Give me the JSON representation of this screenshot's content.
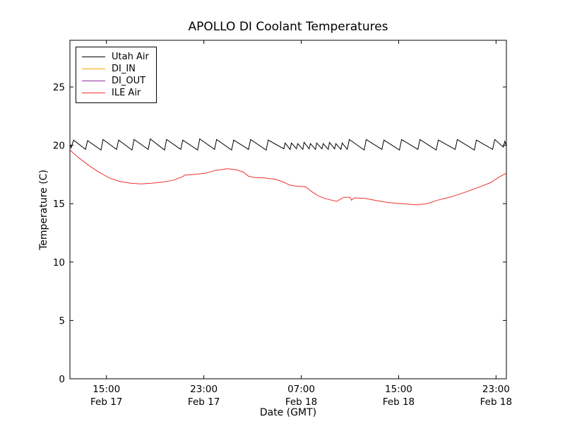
{
  "chart_data": {
    "type": "line",
    "title": "APOLLO DI Coolant Temperatures",
    "xlabel": "Date (GMT)",
    "ylabel": "Temperature (C)",
    "x_unit": "hours since Feb 17 00:00 GMT",
    "xlim": [
      12.0,
      47.85
    ],
    "ylim": [
      0,
      29
    ],
    "yticks": [
      0,
      5,
      10,
      15,
      20,
      25
    ],
    "xticks": [
      {
        "hour": 15,
        "time": "15:00",
        "date": "Feb 17"
      },
      {
        "hour": 23,
        "time": "23:00",
        "date": "Feb 17"
      },
      {
        "hour": 31,
        "time": "07:00",
        "date": "Feb 18"
      },
      {
        "hour": 39,
        "time": "15:00",
        "date": "Feb 18"
      },
      {
        "hour": 47,
        "time": "23:00",
        "date": "Feb 18"
      }
    ],
    "grid": false,
    "legend_position": "upper-left",
    "frame_color": "#000000",
    "series": [
      {
        "name": "Utah Air",
        "color": "#000000",
        "visible_in_plot": true,
        "points": [
          [
            12.0,
            20.1
          ],
          [
            12.1,
            19.8
          ],
          [
            12.3,
            20.45
          ],
          [
            13.28,
            19.65
          ],
          [
            13.45,
            20.4
          ],
          [
            14.55,
            19.6
          ],
          [
            14.72,
            20.5
          ],
          [
            15.83,
            19.65
          ],
          [
            16.0,
            20.45
          ],
          [
            17.1,
            19.6
          ],
          [
            17.27,
            20.5
          ],
          [
            18.43,
            19.65
          ],
          [
            18.6,
            20.55
          ],
          [
            19.77,
            19.6
          ],
          [
            19.94,
            20.5
          ],
          [
            21.1,
            19.65
          ],
          [
            21.27,
            20.45
          ],
          [
            22.49,
            19.6
          ],
          [
            22.66,
            20.55
          ],
          [
            23.88,
            19.65
          ],
          [
            24.05,
            20.5
          ],
          [
            25.28,
            19.6
          ],
          [
            25.45,
            20.45
          ],
          [
            26.67,
            19.65
          ],
          [
            26.84,
            20.5
          ],
          [
            28.12,
            19.6
          ],
          [
            28.29,
            20.45
          ],
          [
            29.57,
            19.7
          ],
          [
            29.68,
            20.2
          ],
          [
            30.09,
            19.65
          ],
          [
            30.19,
            20.2
          ],
          [
            30.61,
            19.7
          ],
          [
            30.71,
            20.15
          ],
          [
            31.13,
            19.65
          ],
          [
            31.23,
            20.25
          ],
          [
            31.65,
            19.7
          ],
          [
            31.75,
            20.15
          ],
          [
            32.17,
            19.65
          ],
          [
            32.27,
            20.2
          ],
          [
            32.7,
            19.7
          ],
          [
            32.8,
            20.15
          ],
          [
            33.22,
            19.65
          ],
          [
            33.32,
            20.25
          ],
          [
            33.74,
            19.7
          ],
          [
            33.84,
            20.15
          ],
          [
            34.26,
            19.65
          ],
          [
            34.36,
            20.2
          ],
          [
            34.78,
            19.65
          ],
          [
            34.95,
            20.5
          ],
          [
            36.17,
            19.6
          ],
          [
            36.34,
            20.5
          ],
          [
            37.62,
            19.65
          ],
          [
            37.79,
            20.45
          ],
          [
            39.07,
            19.6
          ],
          [
            39.24,
            20.5
          ],
          [
            40.58,
            19.65
          ],
          [
            40.75,
            20.5
          ],
          [
            42.09,
            19.6
          ],
          [
            42.26,
            20.45
          ],
          [
            43.65,
            19.65
          ],
          [
            43.82,
            20.5
          ],
          [
            45.22,
            19.6
          ],
          [
            45.39,
            20.45
          ],
          [
            46.72,
            19.65
          ],
          [
            46.89,
            20.5
          ],
          [
            47.6,
            19.85
          ],
          [
            47.72,
            20.35
          ],
          [
            47.83,
            20.0
          ]
        ]
      },
      {
        "name": "DI_IN",
        "color": "#ffa500",
        "visible_in_plot": false,
        "points": []
      },
      {
        "name": "DI_OUT",
        "color": "#9030a0",
        "visible_in_plot": false,
        "points": []
      },
      {
        "name": "ILE Air",
        "color": "#f03030",
        "visible_in_plot": true,
        "points": [
          [
            12.0,
            19.6
          ],
          [
            12.64,
            19.0
          ],
          [
            13.51,
            18.3
          ],
          [
            14.38,
            17.7
          ],
          [
            15.25,
            17.2
          ],
          [
            16.12,
            16.9
          ],
          [
            16.99,
            16.75
          ],
          [
            17.86,
            16.7
          ],
          [
            18.72,
            16.75
          ],
          [
            19.59,
            16.85
          ],
          [
            20.46,
            17.0
          ],
          [
            21.22,
            17.3
          ],
          [
            21.45,
            17.45
          ],
          [
            22.2,
            17.5
          ],
          [
            23.07,
            17.6
          ],
          [
            23.94,
            17.85
          ],
          [
            24.93,
            18.0
          ],
          [
            25.68,
            17.9
          ],
          [
            26.26,
            17.7
          ],
          [
            26.67,
            17.35
          ],
          [
            27.13,
            17.25
          ],
          [
            28.0,
            17.2
          ],
          [
            28.87,
            17.1
          ],
          [
            29.45,
            16.9
          ],
          [
            30.03,
            16.6
          ],
          [
            30.61,
            16.5
          ],
          [
            31.36,
            16.45
          ],
          [
            31.77,
            16.1
          ],
          [
            32.35,
            15.7
          ],
          [
            32.93,
            15.45
          ],
          [
            33.51,
            15.3
          ],
          [
            33.91,
            15.2
          ],
          [
            34.49,
            15.55
          ],
          [
            35.01,
            15.55
          ],
          [
            35.13,
            15.3
          ],
          [
            35.36,
            15.5
          ],
          [
            36.23,
            15.45
          ],
          [
            37.28,
            15.25
          ],
          [
            38.14,
            15.1
          ],
          [
            39.3,
            15.0
          ],
          [
            40.46,
            14.9
          ],
          [
            41.33,
            15.0
          ],
          [
            42.2,
            15.3
          ],
          [
            43.36,
            15.6
          ],
          [
            44.52,
            16.0
          ],
          [
            45.68,
            16.45
          ],
          [
            46.55,
            16.8
          ],
          [
            47.13,
            17.2
          ],
          [
            47.54,
            17.45
          ],
          [
            47.83,
            17.6
          ]
        ]
      }
    ]
  }
}
